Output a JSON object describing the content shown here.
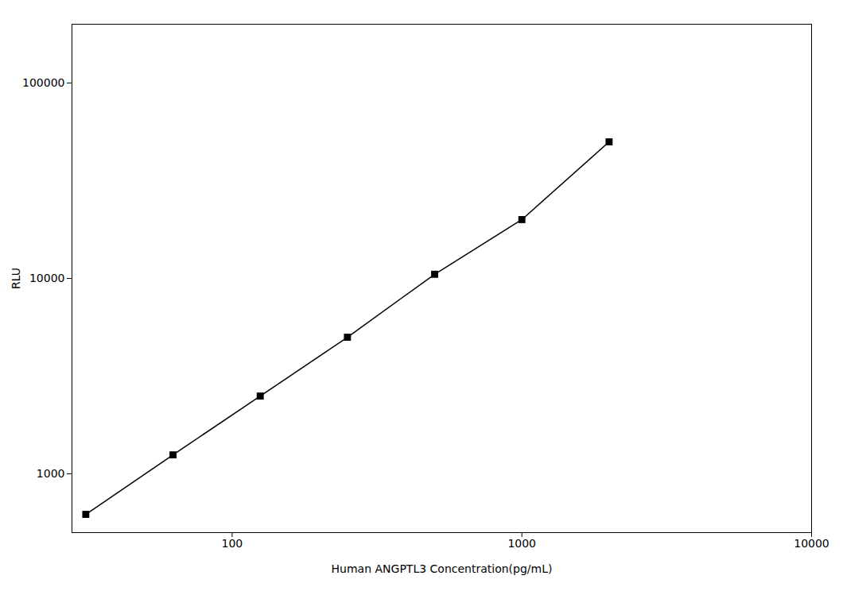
{
  "chart_data": {
    "type": "line",
    "marker": "square",
    "log": true,
    "grid": false,
    "xlabel": "Human ANGPTL3 Concentration(pg/mL)",
    "ylabel": "RLU",
    "x": [
      31.25,
      62.5,
      125,
      250,
      500,
      1000,
      2000
    ],
    "values": [
      620,
      1250,
      2500,
      5000,
      10500,
      20000,
      50000
    ],
    "xlim": [
      28,
      10000
    ],
    "xticks": [
      100,
      1000,
      10000
    ],
    "ylim": [
      500,
      200000
    ],
    "yticks": [
      1000,
      10000,
      100000
    ]
  }
}
